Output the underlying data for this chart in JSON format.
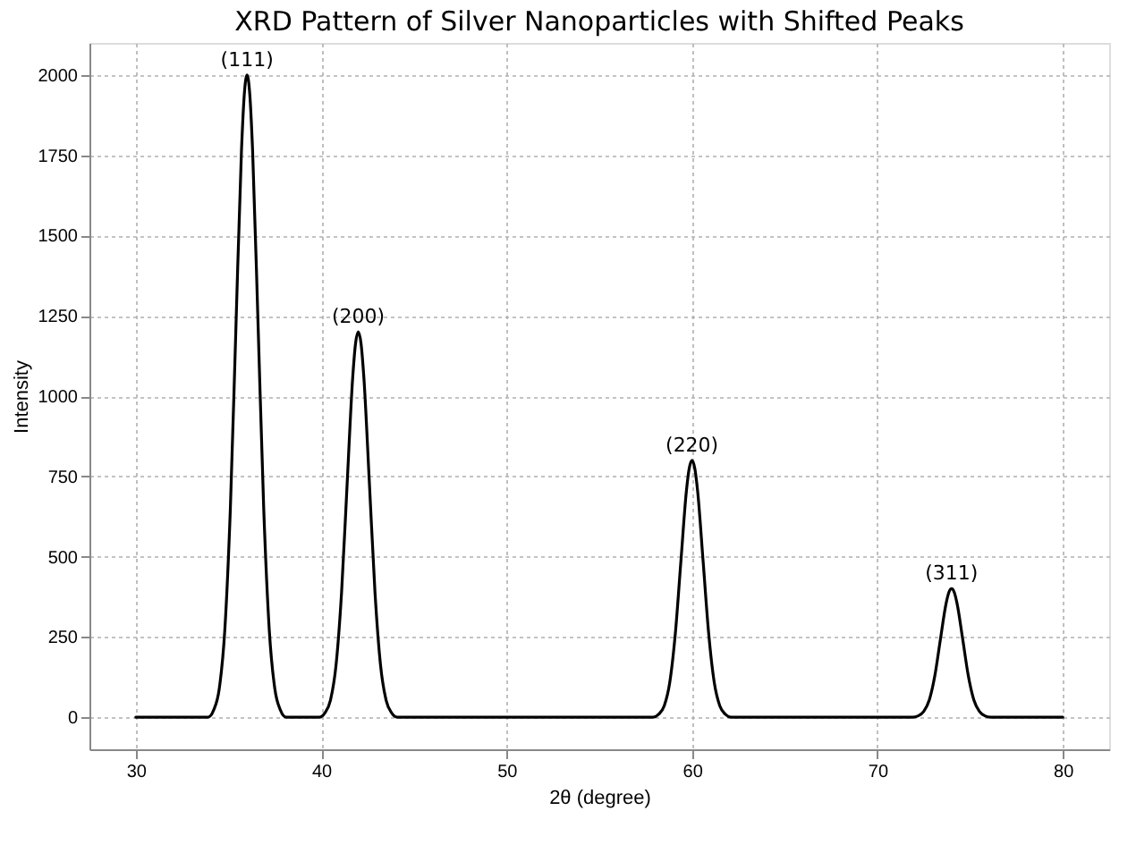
{
  "chart_data": {
    "type": "line",
    "title": "XRD Pattern of Silver Nanoparticles with Shifted Peaks",
    "xlabel": "2θ (degree)",
    "ylabel": "Intensity",
    "x": [
      30,
      33.9,
      34.2,
      34.5,
      34.8,
      35.1,
      35.4,
      35.7,
      35.85,
      36,
      36.15,
      36.3,
      36.6,
      36.9,
      37.2,
      37.5,
      37.8,
      38.1,
      39.9,
      40.2,
      40.5,
      40.8,
      41.1,
      41.4,
      41.7,
      41.85,
      42,
      42.15,
      42.3,
      42.6,
      42.9,
      43.2,
      43.5,
      43.8,
      44.1,
      57.9,
      58.2,
      58.5,
      58.8,
      59.1,
      59.4,
      59.7,
      59.85,
      60,
      60.15,
      60.3,
      60.6,
      60.9,
      61.2,
      61.5,
      61.8,
      62.1,
      71.9,
      72.2,
      72.5,
      72.8,
      73.1,
      73.4,
      73.7,
      73.85,
      74,
      74.15,
      74.3,
      74.6,
      74.9,
      75.2,
      75.5,
      75.8,
      76.1,
      80
    ],
    "series": [
      {
        "color": "#000000",
        "values": [
          0,
          0,
          22,
          88,
          271,
          649,
          1213,
          1765,
          1938,
          2000,
          1938,
          1765,
          1213,
          649,
          271,
          88,
          22,
          0,
          0,
          13,
          53,
          162,
          390,
          728,
          1059,
          1163,
          1200,
          1163,
          1059,
          728,
          390,
          162,
          53,
          13,
          0,
          0,
          9,
          35,
          108,
          260,
          485,
          706,
          775,
          800,
          775,
          706,
          485,
          260,
          108,
          35,
          9,
          0,
          0,
          4,
          18,
          54,
          130,
          243,
          353,
          388,
          400,
          388,
          353,
          243,
          130,
          54,
          18,
          4,
          0,
          0
        ]
      }
    ],
    "annotations": [
      {
        "text": "(111)",
        "x": 36,
        "y": 2000
      },
      {
        "text": "(200)",
        "x": 42,
        "y": 1200
      },
      {
        "text": "(220)",
        "x": 60,
        "y": 800
      },
      {
        "text": "(311)",
        "x": 74,
        "y": 400
      }
    ],
    "xlim": [
      27.5,
      82.5
    ],
    "xticks": [
      30,
      40,
      50,
      60,
      70,
      80
    ],
    "ylim": [
      -100,
      2100
    ],
    "yticks": [
      0,
      250,
      500,
      750,
      1000,
      1250,
      1500,
      1750,
      2000
    ],
    "grid": true,
    "line_style": "solid",
    "marker": "none"
  }
}
